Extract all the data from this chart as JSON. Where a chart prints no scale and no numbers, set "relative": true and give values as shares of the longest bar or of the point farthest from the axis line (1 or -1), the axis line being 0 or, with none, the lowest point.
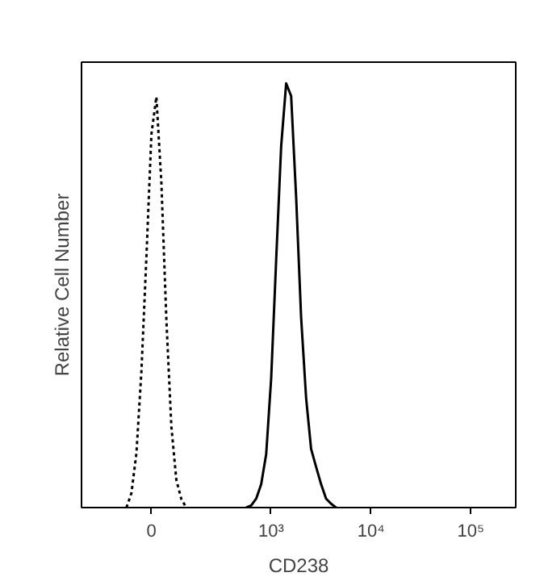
{
  "chart_data": {
    "type": "line",
    "relative": true,
    "xlabel": "CD238",
    "ylabel": "Relative Cell Number",
    "categories": [
      null,
      null,
      null,
      null,
      null,
      null,
      null,
      null,
      null,
      null,
      null,
      null,
      null,
      "0",
      null,
      null,
      null,
      null,
      null,
      null,
      null,
      null,
      null,
      null,
      null,
      null,
      null,
      null,
      null,
      null,
      null,
      null,
      null,
      null,
      null,
      null,
      null,
      "10³",
      null,
      null,
      null,
      null,
      null,
      null,
      null,
      null,
      null,
      null,
      null,
      null,
      null,
      null,
      null,
      null,
      null,
      null,
      null,
      "10⁴",
      null,
      null,
      null,
      null,
      null,
      null,
      null,
      null,
      null,
      null,
      null,
      null,
      null,
      null,
      null,
      null,
      null,
      null,
      null,
      "10⁵",
      null,
      null,
      null,
      null,
      null,
      null,
      null,
      null
    ],
    "grid": false,
    "series": [
      {
        "color": "#000000",
        "line_style": "dotted",
        "values": [
          null,
          null,
          null,
          null,
          null,
          null,
          null,
          null,
          0,
          0.034,
          0.128,
          0.321,
          0.59,
          0.88,
          0.968,
          0.766,
          0.443,
          0.191,
          0.065,
          0.02,
          0,
          null,
          null,
          null,
          null,
          null,
          null,
          null,
          null,
          null,
          null,
          null,
          null,
          null,
          null,
          null,
          null,
          null,
          null,
          null,
          null,
          null,
          null,
          null,
          null,
          null,
          null,
          null,
          null,
          null,
          null,
          null,
          null,
          null,
          null,
          null,
          null,
          null,
          null,
          null,
          null,
          null,
          null,
          null,
          null,
          null,
          null,
          null,
          null,
          null,
          null,
          null,
          null,
          null,
          null,
          null,
          null,
          null,
          null,
          null,
          null,
          null,
          null,
          null,
          null,
          null
        ]
      },
      {
        "color": "#000000",
        "line_style": "solid",
        "values": [
          null,
          null,
          null,
          null,
          null,
          null,
          null,
          null,
          null,
          null,
          null,
          null,
          null,
          null,
          null,
          null,
          null,
          null,
          null,
          null,
          null,
          null,
          null,
          null,
          null,
          null,
          null,
          null,
          null,
          null,
          null,
          null,
          0,
          0.005,
          0.021,
          0.055,
          0.126,
          0.305,
          0.584,
          0.852,
          1,
          0.97,
          0.732,
          0.448,
          0.258,
          0.138,
          0.096,
          0.055,
          0.021,
          0.009,
          0,
          null,
          null,
          null,
          null,
          null,
          null,
          null,
          null,
          null,
          null,
          null,
          null,
          null,
          null,
          null,
          null,
          null,
          null,
          null,
          null,
          null,
          null,
          null,
          null,
          null,
          null,
          null,
          null,
          null,
          null,
          null,
          null,
          null,
          null,
          null
        ]
      }
    ]
  }
}
